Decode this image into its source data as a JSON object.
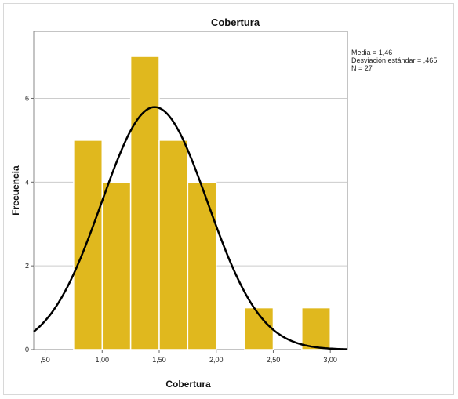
{
  "chart_data": {
    "type": "bar",
    "title": "Cobertura",
    "xlabel": "Cobertura",
    "ylabel": "Frecuencia",
    "xlim": [
      0.4,
      3.15
    ],
    "ylim": [
      0,
      7.6
    ],
    "x_ticks": [
      {
        "value": 0.5,
        "label": ",50"
      },
      {
        "value": 1.0,
        "label": "1,00"
      },
      {
        "value": 1.5,
        "label": "1,50"
      },
      {
        "value": 2.0,
        "label": "2,00"
      },
      {
        "value": 2.5,
        "label": "2,50"
      },
      {
        "value": 3.0,
        "label": "3,00"
      }
    ],
    "y_ticks": [
      {
        "value": 0,
        "label": "0"
      },
      {
        "value": 2,
        "label": "2"
      },
      {
        "value": 4,
        "label": "4"
      },
      {
        "value": 6,
        "label": "6"
      }
    ],
    "bins": [
      {
        "start": 0.75,
        "end": 1.0,
        "count": 5
      },
      {
        "start": 1.0,
        "end": 1.25,
        "count": 4
      },
      {
        "start": 1.25,
        "end": 1.5,
        "count": 7
      },
      {
        "start": 1.5,
        "end": 1.75,
        "count": 5
      },
      {
        "start": 1.75,
        "end": 2.0,
        "count": 4
      },
      {
        "start": 2.0,
        "end": 2.25,
        "count": 0
      },
      {
        "start": 2.25,
        "end": 2.5,
        "count": 1
      },
      {
        "start": 2.5,
        "end": 2.75,
        "count": 0
      },
      {
        "start": 2.75,
        "end": 3.0,
        "count": 1
      }
    ],
    "normal_curve": {
      "mean": 1.46,
      "sd": 0.465,
      "n": 27,
      "bin_width": 0.25
    },
    "grid": {
      "horizontal": true,
      "vertical": false
    },
    "bar_color": "#e0b81e",
    "bar_edge_color": "#ffffff",
    "curve_color": "#000000",
    "plot_background": "#ffffff",
    "gridline_color": "#cccccc",
    "stats_lines": [
      "Media = 1,46",
      "Desviación estándar = ,465",
      "N = 27"
    ],
    "legend_position": "top-right"
  }
}
